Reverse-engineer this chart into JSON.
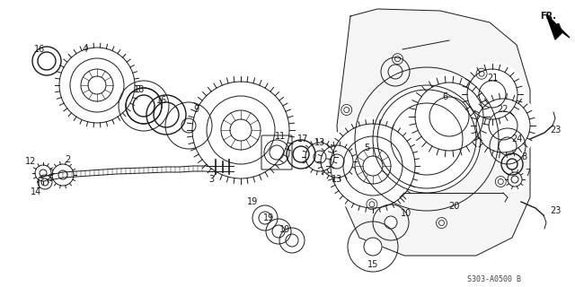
{
  "bg_color": "#ffffff",
  "line_color": "#1a1a1a",
  "part_number": "S303-A0500 B",
  "fig_width": 6.4,
  "fig_height": 3.2,
  "dpi": 100
}
